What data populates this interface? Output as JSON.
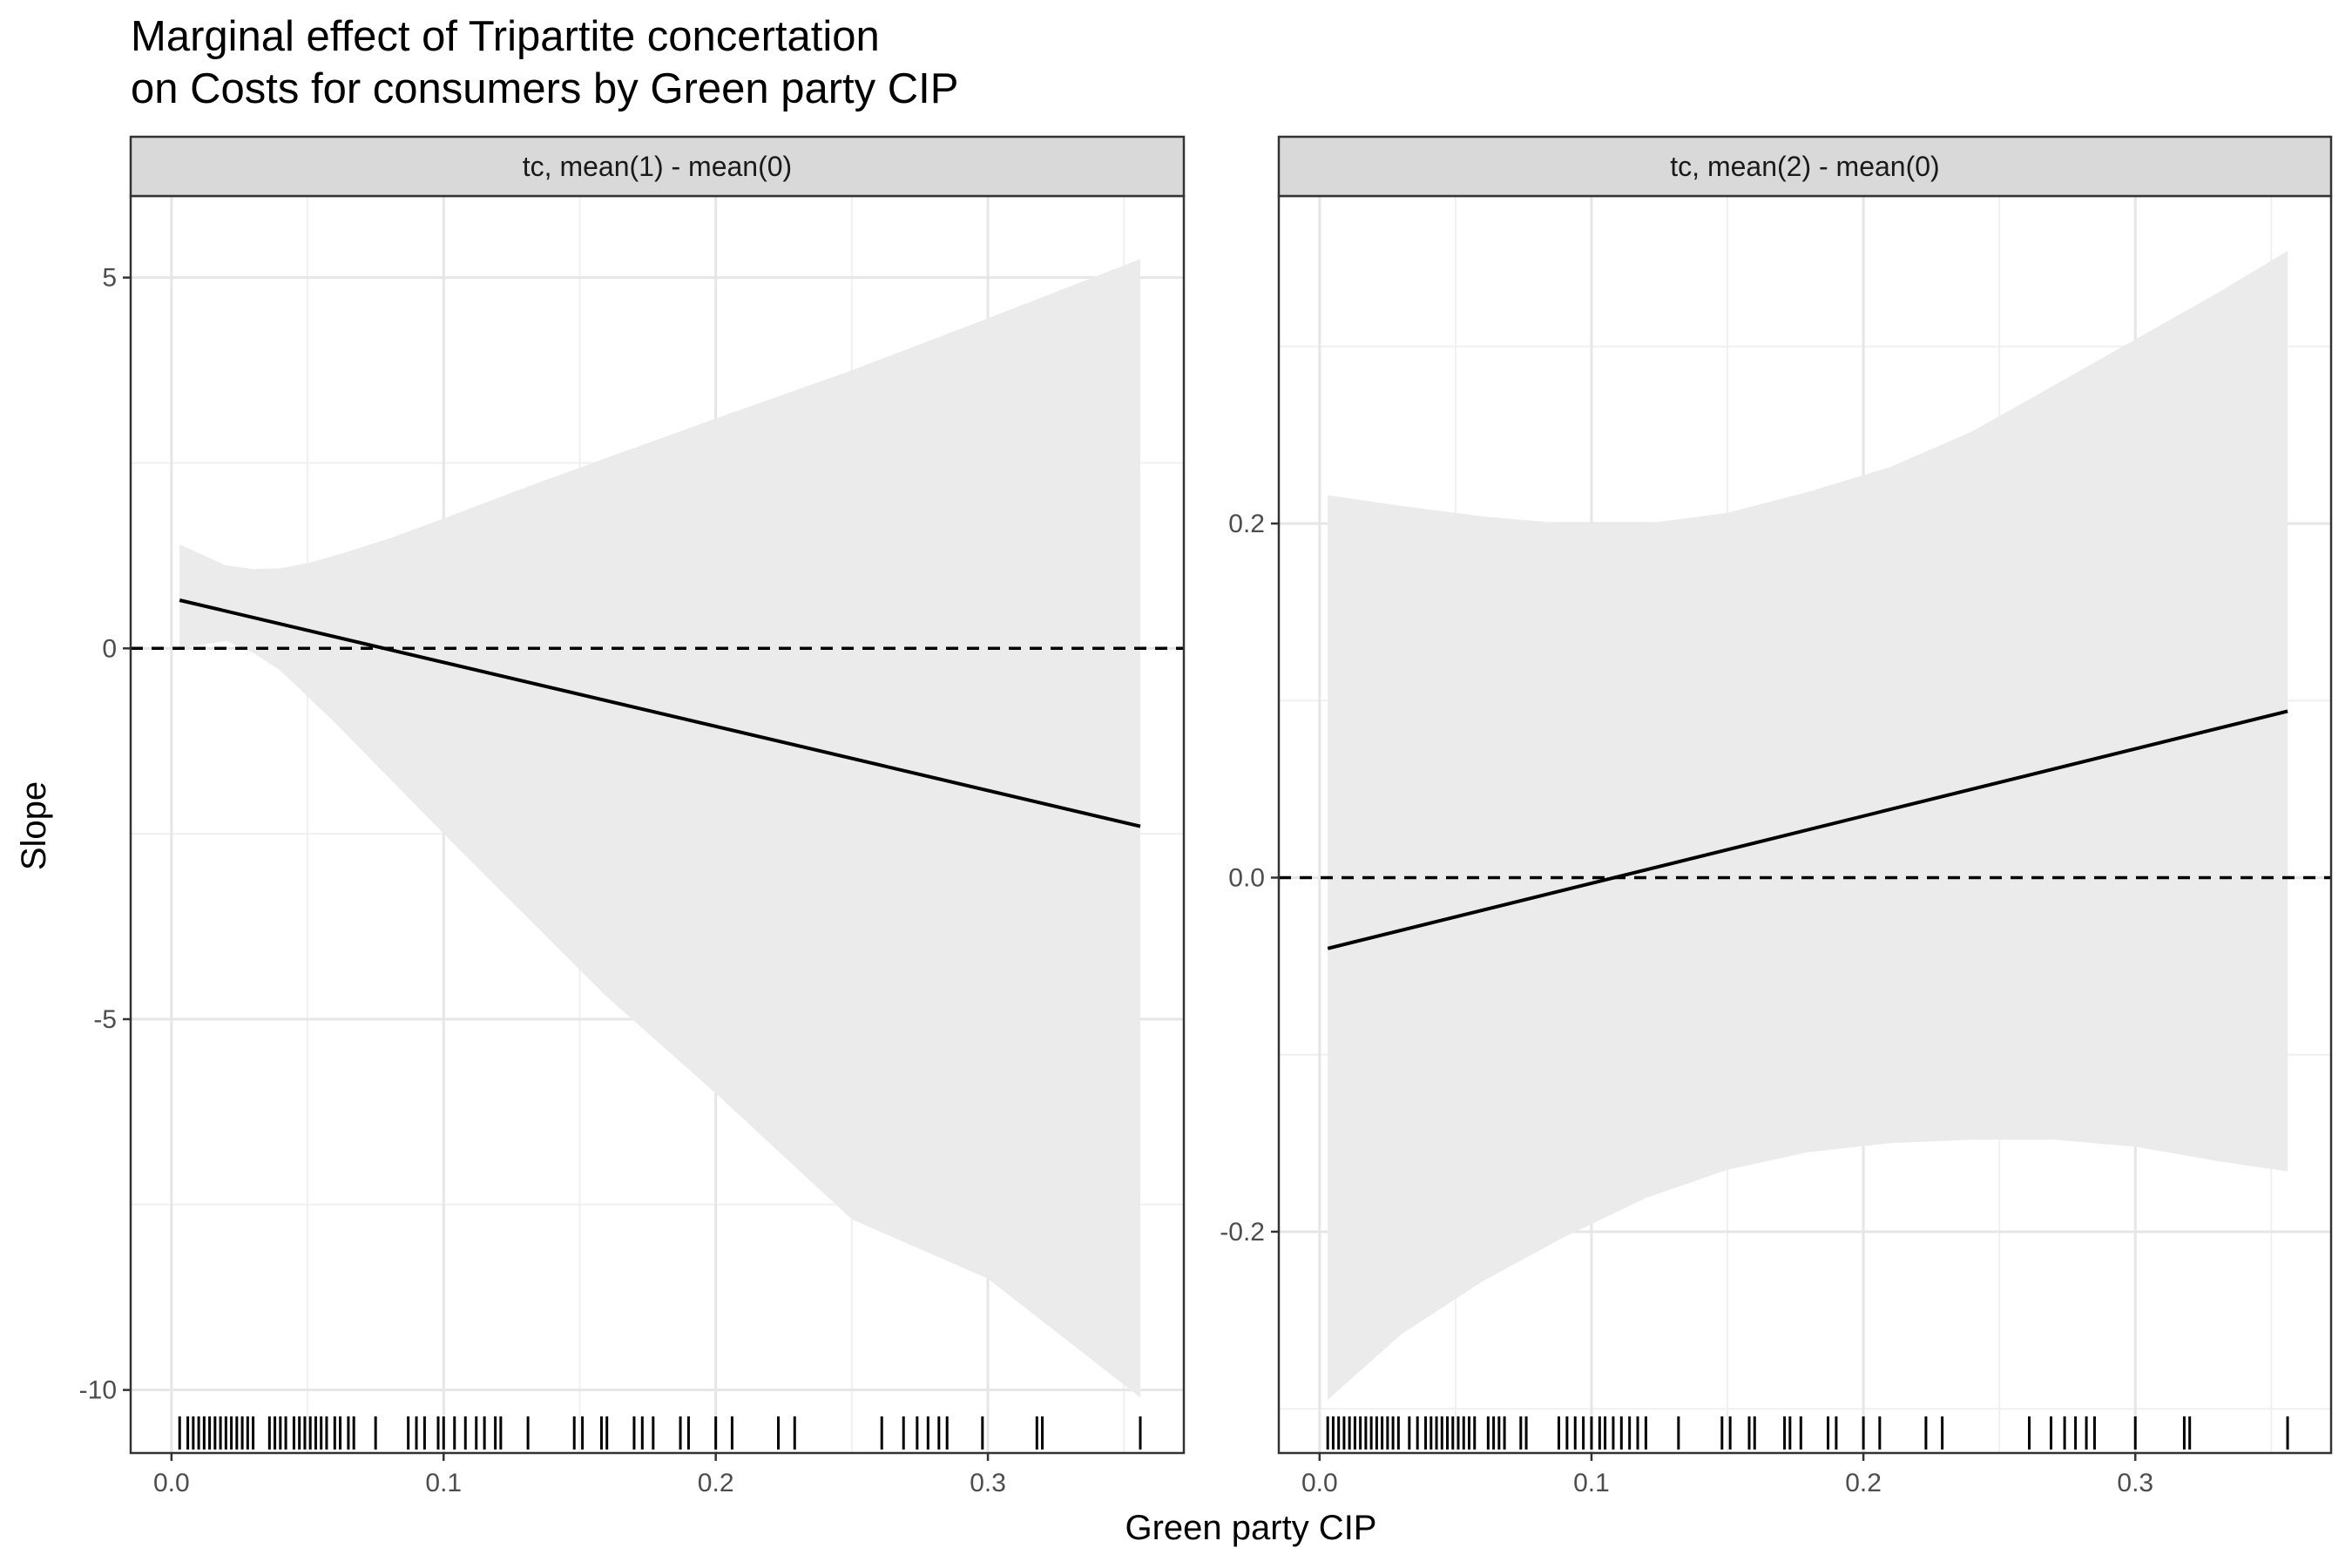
{
  "title": {
    "line1": "Marginal effect of Tripartite concertation",
    "line2": "on Costs for consumers by Green party CIP"
  },
  "xlabel": "Green party CIP",
  "ylabel": "Slope",
  "chart_data": [
    {
      "type": "line",
      "panel": "tc, mean(1) - mean(0)",
      "x_ticks": [
        0.0,
        0.1,
        0.2,
        0.3
      ],
      "x_tick_labels": [
        "0.0",
        "0.1",
        "0.2",
        "0.3"
      ],
      "y_ticks": [
        5,
        0,
        -5,
        -10
      ],
      "y_tick_labels": [
        "5",
        "0",
        "-5",
        "-10"
      ],
      "xlim": [
        -0.015,
        0.372
      ],
      "ylim": [
        -10.85,
        6.1
      ],
      "reference_line": 0,
      "grid": true,
      "estimate": {
        "x": [
          0.003,
          0.356
        ],
        "y": [
          0.65,
          -2.4
        ]
      },
      "ci": {
        "x": [
          0.003,
          0.02,
          0.03,
          0.04,
          0.05,
          0.06,
          0.08,
          0.1,
          0.13,
          0.16,
          0.2,
          0.25,
          0.3,
          0.356
        ],
        "upper": [
          1.4,
          1.12,
          1.07,
          1.08,
          1.15,
          1.25,
          1.48,
          1.75,
          2.17,
          2.57,
          3.1,
          3.75,
          4.45,
          5.25
        ],
        "lower": [
          0.0,
          0.1,
          -0.06,
          -0.3,
          -0.65,
          -1.0,
          -1.75,
          -2.5,
          -3.6,
          -4.7,
          -6.0,
          -7.7,
          -8.5,
          -10.1
        ]
      },
      "rug": [
        0.003,
        0.006,
        0.008,
        0.01,
        0.012,
        0.014,
        0.016,
        0.018,
        0.02,
        0.022,
        0.024,
        0.026,
        0.028,
        0.03,
        0.036,
        0.038,
        0.04,
        0.042,
        0.045,
        0.047,
        0.049,
        0.051,
        0.053,
        0.055,
        0.057,
        0.06,
        0.062,
        0.065,
        0.067,
        0.075,
        0.087,
        0.09,
        0.093,
        0.098,
        0.1,
        0.104,
        0.108,
        0.112,
        0.115,
        0.119,
        0.121,
        0.131,
        0.148,
        0.151,
        0.158,
        0.16,
        0.17,
        0.173,
        0.177,
        0.187,
        0.19,
        0.2,
        0.206,
        0.223,
        0.229,
        0.261,
        0.269,
        0.274,
        0.278,
        0.282,
        0.285,
        0.298,
        0.318,
        0.32,
        0.356
      ]
    },
    {
      "type": "line",
      "panel": "tc, mean(2) - mean(0)",
      "x_ticks": [
        0.0,
        0.1,
        0.2,
        0.3
      ],
      "x_tick_labels": [
        "0.0",
        "0.1",
        "0.2",
        "0.3"
      ],
      "y_ticks": [
        0.2,
        0.0,
        -0.2
      ],
      "y_tick_labels": [
        "0.2",
        "0.0",
        "-0.2"
      ],
      "xlim": [
        -0.015,
        0.372
      ],
      "ylim": [
        -0.325,
        0.385
      ],
      "reference_line": 0,
      "grid": true,
      "estimate": {
        "x": [
          0.003,
          0.356
        ],
        "y": [
          -0.04,
          0.094
        ]
      },
      "ci": {
        "x": [
          0.003,
          0.03,
          0.06,
          0.09,
          0.12,
          0.15,
          0.18,
          0.21,
          0.24,
          0.27,
          0.3,
          0.33,
          0.356
        ],
        "upper": [
          0.216,
          0.21,
          0.204,
          0.2,
          0.2,
          0.206,
          0.218,
          0.232,
          0.252,
          0.278,
          0.304,
          0.33,
          0.354
        ],
        "lower": [
          -0.295,
          -0.258,
          -0.228,
          -0.203,
          -0.181,
          -0.165,
          -0.155,
          -0.15,
          -0.148,
          -0.148,
          -0.152,
          -0.16,
          -0.166
        ]
      },
      "rug": [
        0.003,
        0.005,
        0.007,
        0.009,
        0.011,
        0.013,
        0.015,
        0.017,
        0.019,
        0.021,
        0.023,
        0.025,
        0.027,
        0.029,
        0.033,
        0.036,
        0.039,
        0.041,
        0.043,
        0.045,
        0.047,
        0.049,
        0.051,
        0.053,
        0.055,
        0.057,
        0.062,
        0.064,
        0.066,
        0.068,
        0.074,
        0.076,
        0.088,
        0.091,
        0.094,
        0.097,
        0.1,
        0.103,
        0.105,
        0.108,
        0.111,
        0.114,
        0.117,
        0.12,
        0.132,
        0.148,
        0.151,
        0.158,
        0.16,
        0.171,
        0.173,
        0.177,
        0.187,
        0.19,
        0.2,
        0.206,
        0.223,
        0.229,
        0.261,
        0.269,
        0.274,
        0.278,
        0.282,
        0.285,
        0.3,
        0.318,
        0.32,
        0.356
      ]
    }
  ]
}
